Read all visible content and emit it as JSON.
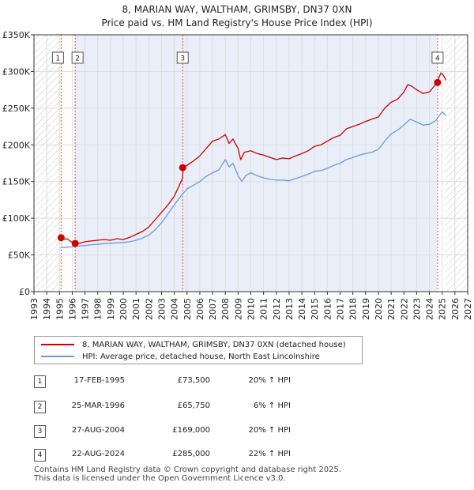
{
  "title_line1": "8, MARIAN WAY, WALTHAM, GRIMSBY, DN37 0XN",
  "title_line2": "Price paid vs. HM Land Registry's House Price Index (HPI)",
  "chart_data": {
    "type": "line",
    "xlabel": "",
    "ylabel": "",
    "xlim": [
      1993,
      2027
    ],
    "ylim": [
      0,
      350000
    ],
    "x_ticks": [
      1993,
      1994,
      1995,
      1996,
      1997,
      1998,
      1999,
      2000,
      2001,
      2002,
      2003,
      2004,
      2005,
      2006,
      2007,
      2008,
      2009,
      2010,
      2011,
      2012,
      2013,
      2014,
      2015,
      2016,
      2017,
      2018,
      2019,
      2020,
      2021,
      2022,
      2023,
      2024,
      2025,
      2026,
      2027
    ],
    "y_ticks": [
      {
        "value": 0,
        "label": "£0"
      },
      {
        "value": 50000,
        "label": "£50K"
      },
      {
        "value": 100000,
        "label": "£100K"
      },
      {
        "value": 150000,
        "label": "£150K"
      },
      {
        "value": 200000,
        "label": "£200K"
      },
      {
        "value": 250000,
        "label": "£250K"
      },
      {
        "value": 300000,
        "label": "£300K"
      },
      {
        "value": 350000,
        "label": "£350K"
      }
    ],
    "grid": true,
    "shaded_range": [
      1996.2,
      2024.6
    ],
    "hatched_before": 1995.1,
    "hatched_after": 2025.2,
    "series": [
      {
        "name": "8, MARIAN WAY, WALTHAM, GRIMSBY, DN37 0XN (detached house)",
        "color": "#cc0000",
        "x": [
          1995.1,
          1995.3,
          1995.6,
          1995.9,
          1996.2,
          1996.6,
          1997,
          1997.5,
          1998,
          1998.5,
          1999,
          1999.5,
          2000,
          2000.5,
          2001,
          2001.5,
          2002,
          2002.5,
          2003,
          2003.5,
          2004,
          2004.4,
          2004.65,
          2004.7,
          2005,
          2005.5,
          2006,
          2006.5,
          2007,
          2007.5,
          2008,
          2008.3,
          2008.6,
          2009,
          2009.2,
          2009.5,
          2010,
          2010.5,
          2011,
          2011.5,
          2012,
          2012.5,
          2013,
          2013.5,
          2014,
          2014.5,
          2015,
          2015.5,
          2016,
          2016.5,
          2017,
          2017.5,
          2018,
          2018.5,
          2019,
          2019.5,
          2020,
          2020.5,
          2021,
          2021.5,
          2022,
          2022.3,
          2022.6,
          2023,
          2023.5,
          2024,
          2024.6,
          2024.9,
          2025.1,
          2025.3
        ],
        "values": [
          73500,
          71000,
          72000,
          68000,
          65750,
          66000,
          68000,
          69000,
          70000,
          71000,
          70000,
          72000,
          71000,
          74000,
          78000,
          82000,
          88000,
          98000,
          108000,
          118000,
          130000,
          145000,
          155000,
          169000,
          172000,
          178000,
          185000,
          195000,
          205000,
          208000,
          214000,
          202000,
          208000,
          195000,
          180000,
          190000,
          192000,
          188000,
          186000,
          183000,
          180000,
          182000,
          181000,
          185000,
          188000,
          192000,
          198000,
          200000,
          205000,
          210000,
          213000,
          222000,
          225000,
          228000,
          232000,
          235000,
          238000,
          250000,
          258000,
          262000,
          272000,
          282000,
          280000,
          275000,
          270000,
          272000,
          285000,
          298000,
          295000,
          288000
        ]
      },
      {
        "name": "HPI: Average price, detached house, North East Lincolnshire",
        "color": "#6a9bd8",
        "x": [
          1995.1,
          1995.5,
          1996,
          1996.5,
          1997,
          1997.5,
          1998,
          1998.5,
          1999,
          1999.5,
          2000,
          2000.5,
          2001,
          2001.5,
          2002,
          2002.5,
          2003,
          2003.5,
          2004,
          2004.5,
          2005,
          2005.5,
          2006,
          2006.5,
          2007,
          2007.5,
          2008,
          2008.3,
          2008.6,
          2009,
          2009.3,
          2009.6,
          2010,
          2010.5,
          2011,
          2011.5,
          2012,
          2012.5,
          2013,
          2013.5,
          2014,
          2014.5,
          2015,
          2015.5,
          2016,
          2016.5,
          2017,
          2017.5,
          2018,
          2018.5,
          2019,
          2019.5,
          2020,
          2020.5,
          2021,
          2021.5,
          2022,
          2022.5,
          2023,
          2023.5,
          2024,
          2024.5,
          2025,
          2025.3
        ],
        "values": [
          60000,
          60500,
          61000,
          62000,
          63000,
          64000,
          64500,
          65500,
          66000,
          66500,
          67000,
          68000,
          70000,
          73000,
          77000,
          84000,
          94000,
          106000,
          118000,
          130000,
          140000,
          145000,
          150000,
          157000,
          162000,
          166000,
          180000,
          170000,
          175000,
          158000,
          150000,
          158000,
          162000,
          158000,
          155000,
          153000,
          152000,
          152000,
          151000,
          154000,
          157000,
          160000,
          164000,
          165000,
          168000,
          172000,
          175000,
          180000,
          183000,
          186000,
          188000,
          190000,
          194000,
          205000,
          215000,
          220000,
          227000,
          235000,
          231000,
          227000,
          228000,
          233000,
          245000,
          240000
        ]
      }
    ],
    "transactions": [
      {
        "id": "1",
        "x": 1995.13,
        "price": 73500,
        "date": "17-FEB-1995",
        "price_label": "£73,500",
        "hpi": "20% ↑ HPI"
      },
      {
        "id": "2",
        "x": 1996.23,
        "price": 65750,
        "date": "25-MAR-1996",
        "price_label": "£65,750",
        "hpi": "6% ↑ HPI"
      },
      {
        "id": "3",
        "x": 2004.66,
        "price": 169000,
        "date": "27-AUG-2004",
        "price_label": "£169,000",
        "hpi": "20% ↑ HPI"
      },
      {
        "id": "4",
        "x": 2024.64,
        "price": 285000,
        "date": "22-AUG-2024",
        "price_label": "£285,000",
        "hpi": "22% ↑ HPI"
      }
    ]
  },
  "legend": {
    "property_label": "8, MARIAN WAY, WALTHAM, GRIMSBY, DN37 0XN (detached house)",
    "hpi_label": "HPI: Average price, detached house, North East Lincolnshire"
  },
  "footer_line1": "Contains HM Land Registry data © Crown copyright and database right 2025.",
  "footer_line2": "This data is licensed under the Open Government Licence v3.0."
}
